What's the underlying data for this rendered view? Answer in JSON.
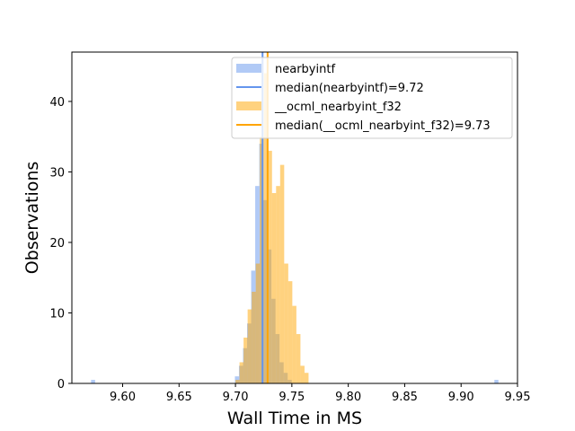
{
  "chart_data": {
    "type": "histogram",
    "xlabel": "Wall Time in MS",
    "ylabel": "Observations",
    "xlim": [
      9.555,
      9.95
    ],
    "ylim": [
      0,
      47
    ],
    "bin_width": 0.0036,
    "x_ticks": [
      "9.60",
      "9.65",
      "9.70",
      "9.75",
      "9.80",
      "9.85",
      "9.90",
      "9.95"
    ],
    "y_ticks": [
      "0",
      "10",
      "20",
      "30",
      "40"
    ],
    "legend_position": "upper-right",
    "series": [
      {
        "name": "nearbyintf",
        "color": "#6495ed",
        "fill_opacity": 0.5,
        "bins": [
          [
            9.572,
            0.5
          ],
          [
            9.6995,
            1
          ],
          [
            9.7031,
            2.5
          ],
          [
            9.7067,
            5
          ],
          [
            9.7103,
            8.5
          ],
          [
            9.7139,
            16
          ],
          [
            9.7175,
            28
          ],
          [
            9.7211,
            34
          ],
          [
            9.7247,
            26
          ],
          [
            9.7283,
            19
          ],
          [
            9.7319,
            12
          ],
          [
            9.7355,
            7
          ],
          [
            9.7391,
            3
          ],
          [
            9.7427,
            1.5
          ],
          [
            9.7463,
            0.5
          ],
          [
            9.9295,
            0.5
          ]
        ],
        "median": 9.724,
        "median_label": "median(nearbyintf)=9.72"
      },
      {
        "name": "__ocml_nearbyint_f32",
        "color": "#ffa500",
        "fill_opacity": 0.5,
        "bins": [
          [
            9.7,
            0.5
          ],
          [
            9.7036,
            3
          ],
          [
            9.7072,
            6.5
          ],
          [
            9.7108,
            10.5
          ],
          [
            9.7144,
            13
          ],
          [
            9.718,
            17
          ],
          [
            9.7216,
            35
          ],
          [
            9.7252,
            44
          ],
          [
            9.7288,
            33
          ],
          [
            9.7324,
            27
          ],
          [
            9.736,
            28
          ],
          [
            9.7396,
            31
          ],
          [
            9.7432,
            17
          ],
          [
            9.7468,
            14.5
          ],
          [
            9.7504,
            11
          ],
          [
            9.754,
            7
          ],
          [
            9.7576,
            2.5
          ],
          [
            9.7612,
            1.5
          ]
        ],
        "median": 9.7285,
        "median_label": "median(__ocml_nearbyint_f32)=9.73"
      }
    ]
  }
}
